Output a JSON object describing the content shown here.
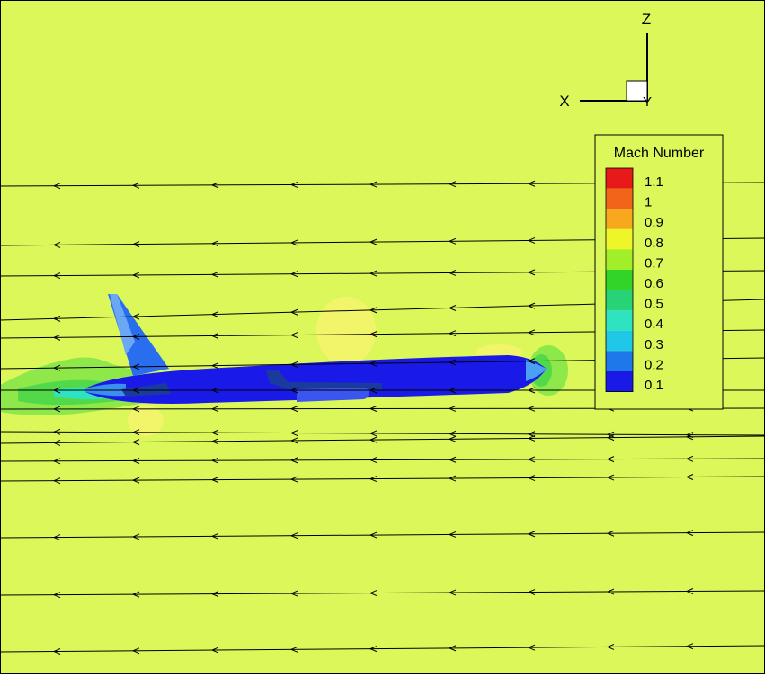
{
  "colors": {
    "background": "#dcf75a",
    "body_blue": "#1a1ae8",
    "streamline": "#000000"
  },
  "axes_triad": {
    "x_label": "X",
    "y_label": "Y",
    "z_label": "Z"
  },
  "legend": {
    "title": "Mach Number",
    "levels": [
      {
        "label": "1.1",
        "color": "#e81919"
      },
      {
        "label": "1",
        "color": "#f26419"
      },
      {
        "label": "0.9",
        "color": "#f7a81c"
      },
      {
        "label": "0.8",
        "color": "#eef528"
      },
      {
        "label": "0.7",
        "color": "#a0ef28"
      },
      {
        "label": "0.6",
        "color": "#33d428"
      },
      {
        "label": "0.5",
        "color": "#28d277"
      },
      {
        "label": "0.4",
        "color": "#2ee3bf"
      },
      {
        "label": "0.3",
        "color": "#20c8e8"
      },
      {
        "label": "0.2",
        "color": "#1e78ea"
      },
      {
        "label": "0.1",
        "color": "#1a1ae8"
      }
    ]
  },
  "chart_data": {
    "type": "contour",
    "variable": "Mach Number",
    "levels": [
      1.1,
      1,
      0.9,
      0.8,
      0.7,
      0.6,
      0.5,
      0.4,
      0.3,
      0.2,
      0.1
    ],
    "freestream_level": 0.8,
    "flow_direction": "-X",
    "streamlines": [
      {
        "y_left": 207,
        "y_right": 203
      },
      {
        "y_left": 273,
        "y_right": 265
      },
      {
        "y_left": 307,
        "y_right": 301
      },
      {
        "y_left": 356,
        "y_right": 333
      },
      {
        "y_left": 376,
        "y_right": 367
      },
      {
        "y_left": 410,
        "y_right": 398
      },
      {
        "y_left": 434,
        "y_right": 434
      },
      {
        "y_left": 455,
        "y_right": 454
      },
      {
        "y_left": 480,
        "y_right": 484
      },
      {
        "y_left": 493,
        "y_right": 485
      },
      {
        "y_left": 513,
        "y_right": 510
      },
      {
        "y_left": 535,
        "y_right": 530
      },
      {
        "y_left": 598,
        "y_right": 592
      },
      {
        "y_left": 662,
        "y_right": 657
      },
      {
        "y_left": 725,
        "y_right": 718
      }
    ]
  }
}
